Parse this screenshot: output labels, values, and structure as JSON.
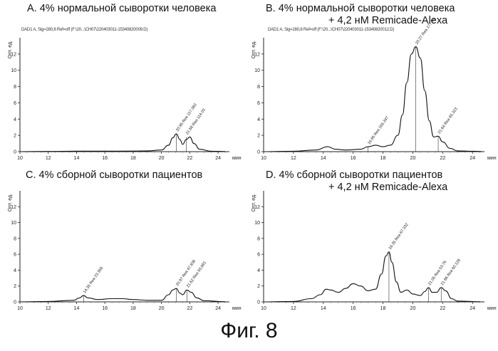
{
  "figure_caption": "Фиг. 8",
  "chart_data": [
    {
      "type": "line",
      "title": "А. 4% нормальной сыворотки человека",
      "subtitle": "",
      "header": "DAD1 A, Sig=280,8 Ref=off (F:\\20...\\CH07\\220403011-15340820009.D)",
      "ylabel": "Опт. ед.",
      "xlabel": "мин",
      "xlim": [
        10,
        24.8
      ],
      "ylim": [
        0,
        14
      ],
      "xticks": [
        10,
        12,
        14,
        16,
        18,
        20,
        22,
        24
      ],
      "yticks": [
        0,
        2,
        4,
        6,
        8,
        10,
        12
      ],
      "series": [
        {
          "x": [
            10,
            12,
            14,
            16,
            18,
            19,
            20,
            20.5,
            20.8,
            21.05,
            21.3,
            21.5,
            21.75,
            22.0,
            22.3,
            22.7,
            23.5,
            24.5
          ],
          "values": [
            0,
            0.03,
            0.06,
            0.06,
            0.07,
            0.1,
            0.2,
            0.8,
            1.7,
            2.2,
            1.5,
            0.9,
            1.5,
            1.8,
            1.0,
            0.3,
            0.05,
            0.02
          ]
        }
      ],
      "peak_labels": [
        {
          "x": 21.05,
          "y": 2.2,
          "text": "20.95 Rea 117.383"
        },
        {
          "x": 21.75,
          "y": 1.8,
          "text": "21.68 Rea 114.03"
        }
      ]
    },
    {
      "type": "line",
      "title": "B. 4% нормальной сыворотки человека",
      "subtitle": "+ 4,2 нМ Remicade-Alexa",
      "header": "DAD1 A, Sig=280,8 Ref=off (F:\\20...\\CH07\\220403011-15340820012.D)",
      "ylabel": "Опт. ед.",
      "xlabel": "мин",
      "xlim": [
        10,
        24.8
      ],
      "ylim": [
        0,
        14
      ],
      "xticks": [
        10,
        12,
        14,
        16,
        18,
        20,
        22,
        24
      ],
      "yticks": [
        0,
        2,
        4,
        6,
        8,
        10,
        12
      ],
      "series": [
        {
          "x": [
            10,
            12,
            13.5,
            14.3,
            14.8,
            15.5,
            16.5,
            17.0,
            17.5,
            18.0,
            18.5,
            19.0,
            19.3,
            19.6,
            19.9,
            20.2,
            20.5,
            20.8,
            21.1,
            21.4,
            21.7,
            22.0,
            22.5,
            23,
            24,
            24.6
          ],
          "values": [
            0,
            0.05,
            0.2,
            0.6,
            0.3,
            0.2,
            0.3,
            0.6,
            0.8,
            0.6,
            0.8,
            2.0,
            4.5,
            8.5,
            12.0,
            12.9,
            11.5,
            7.5,
            3.8,
            1.8,
            1.9,
            1.2,
            0.4,
            0.1,
            0.05,
            0.02
          ]
        }
      ],
      "peak_labels": [
        {
          "x": 17.0,
          "y": 0.6,
          "text": "16.95 Rea 165.347"
        },
        {
          "x": 20.2,
          "y": 12.9,
          "text": "20.27 Rea 177.88"
        },
        {
          "x": 21.7,
          "y": 1.9,
          "text": "21.64 Rea 65.323"
        }
      ]
    },
    {
      "type": "line",
      "title": "C. 4% сборной сыворотки пациентов",
      "subtitle": "",
      "header": "",
      "ylabel": "Опт. ед.",
      "xlabel": "мин",
      "xlim": [
        10,
        24.8
      ],
      "ylim": [
        0,
        14
      ],
      "xticks": [
        10,
        12,
        14,
        16,
        18,
        20,
        22,
        24
      ],
      "yticks": [
        0,
        2,
        4,
        6,
        8,
        10,
        12
      ],
      "series": [
        {
          "x": [
            10,
            12,
            13.8,
            14.2,
            14.5,
            14.8,
            15.5,
            16.5,
            17.2,
            18.0,
            19.0,
            20.0,
            20.5,
            20.8,
            21.05,
            21.3,
            21.5,
            21.8,
            22.1,
            22.5,
            23,
            24.5
          ],
          "values": [
            0,
            0.05,
            0.2,
            0.5,
            0.8,
            0.5,
            0.3,
            0.4,
            0.4,
            0.3,
            0.2,
            0.2,
            0.9,
            1.5,
            1.7,
            1.1,
            0.9,
            1.5,
            1.2,
            0.5,
            0.15,
            0.02
          ]
        }
      ],
      "peak_labels": [
        {
          "x": 14.5,
          "y": 0.8,
          "text": "14.35 Rea 23.358"
        },
        {
          "x": 21.05,
          "y": 1.7,
          "text": "20.97 Rea 47.836"
        },
        {
          "x": 21.8,
          "y": 1.5,
          "text": "21.62 Rea 50.891"
        }
      ]
    },
    {
      "type": "line",
      "title": "D. 4% сборной сыворотки пациентов",
      "subtitle": "+ 4,2 нМ Remicade-Alexa",
      "header": "",
      "ylabel": "Опт. ед.",
      "xlabel": "мин",
      "xlim": [
        10,
        24.8
      ],
      "ylim": [
        0,
        14
      ],
      "xticks": [
        10,
        12,
        14,
        16,
        18,
        20,
        22,
        24
      ],
      "yticks": [
        0,
        2,
        4,
        6,
        8,
        10,
        12
      ],
      "series": [
        {
          "x": [
            10,
            12,
            13.2,
            13.8,
            14.2,
            14.5,
            15.0,
            15.5,
            16.0,
            16.5,
            17.0,
            17.5,
            17.9,
            18.2,
            18.4,
            18.6,
            18.9,
            19.2,
            19.6,
            20.0,
            20.5,
            20.8,
            21.05,
            21.3,
            21.6,
            21.9,
            22.2,
            22.6,
            23,
            24.5
          ],
          "values": [
            0,
            0.05,
            0.4,
            0.9,
            1.6,
            1.5,
            1.2,
            1.7,
            2.3,
            2.0,
            1.4,
            1.6,
            3.5,
            5.8,
            6.3,
            5.0,
            2.5,
            1.2,
            1.5,
            1.0,
            0.8,
            1.3,
            1.8,
            1.2,
            1.2,
            1.8,
            1.4,
            0.4,
            0.1,
            0.02
          ]
        }
      ],
      "peak_labels": [
        {
          "x": 18.4,
          "y": 6.3,
          "text": "18.35 Rea 67.332"
        },
        {
          "x": 21.05,
          "y": 1.8,
          "text": "21.05 Rea 53.76"
        },
        {
          "x": 21.9,
          "y": 1.8,
          "text": "21.86 Rea 60.128"
        }
      ]
    }
  ]
}
